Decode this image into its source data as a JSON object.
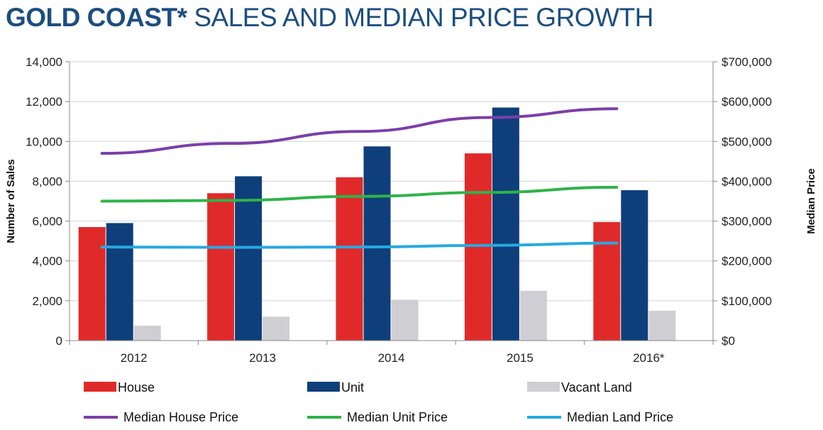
{
  "title": {
    "bold": "GOLD COAST*",
    "rest": "SALES AND MEDIAN PRICE GROWTH"
  },
  "chart_data": {
    "type": "bar",
    "categories": [
      "2012",
      "2013",
      "2014",
      "2015",
      "2016*"
    ],
    "series": [
      {
        "name": "House",
        "kind": "bar",
        "axis": "left",
        "color": "#e02a2a",
        "values": [
          5700,
          7400,
          8200,
          9400,
          5950
        ]
      },
      {
        "name": "Unit",
        "kind": "bar",
        "axis": "left",
        "color": "#0e3f7a",
        "values": [
          5900,
          8250,
          9750,
          11700,
          7550
        ]
      },
      {
        "name": "Vacant Land",
        "kind": "bar",
        "axis": "left",
        "color": "#cfcfd3",
        "values": [
          750,
          1200,
          2050,
          2500,
          1500
        ]
      },
      {
        "name": "Median House Price",
        "kind": "line",
        "axis": "right",
        "color": "#7b3fa8",
        "values": [
          470000,
          495000,
          525000,
          560000,
          582000
        ]
      },
      {
        "name": "Median Unit Price",
        "kind": "line",
        "axis": "right",
        "color": "#2fb34a",
        "values": [
          350000,
          352000,
          362000,
          372000,
          385000
        ]
      },
      {
        "name": "Median Land Price",
        "kind": "line",
        "axis": "right",
        "color": "#27a9e1",
        "values": [
          235000,
          234000,
          235000,
          239000,
          245000
        ]
      }
    ],
    "ylabel": "Number of Sales",
    "ylabel_right": "Median Price",
    "ylim": [
      0,
      14000
    ],
    "ylim_right": [
      0,
      700000
    ],
    "yticks": [
      "0",
      "2,000",
      "4,000",
      "6,000",
      "8,000",
      "10,000",
      "12,000",
      "14,000"
    ],
    "yticks_right": [
      "$0",
      "$100,000",
      "$200,000",
      "$300,000",
      "$400,000",
      "$500,000",
      "$600,000",
      "$700,000"
    ],
    "grid": true,
    "legend": "bottom"
  }
}
